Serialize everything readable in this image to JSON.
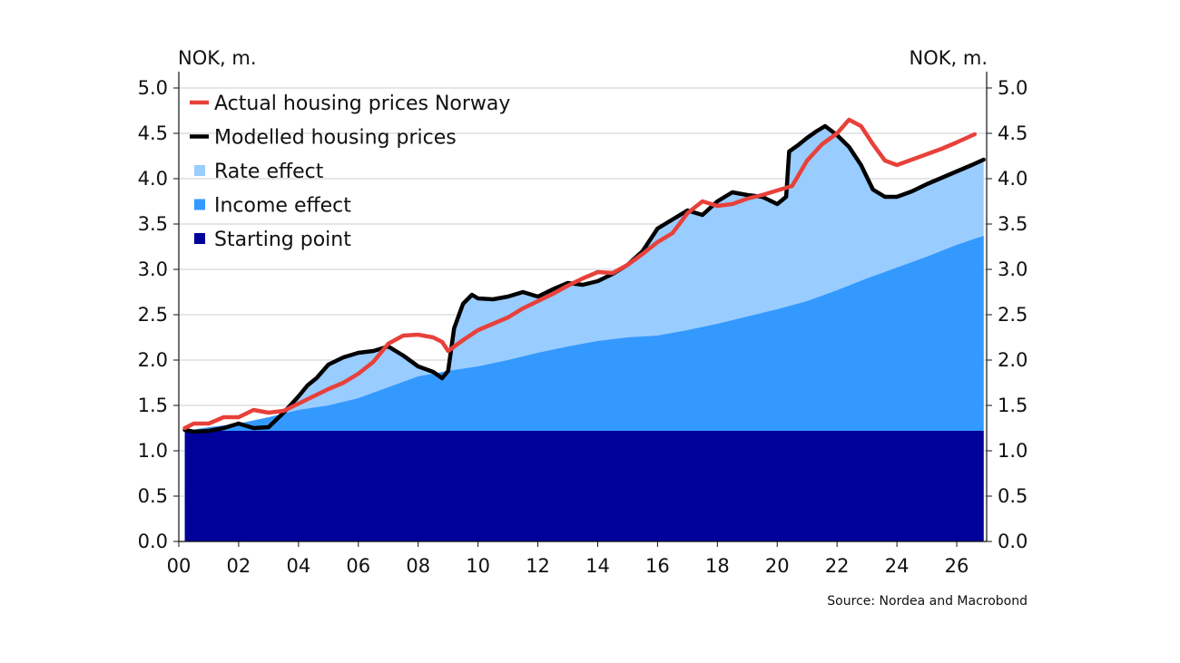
{
  "chart_data": {
    "type": "area",
    "left_axis_label": "NOK, m.",
    "right_axis_label": "NOK, m.",
    "source": "Source: Nordea and Macrobond",
    "ylim": [
      0,
      5
    ],
    "y_ticks": [
      "0.0",
      "0.5",
      "1.0",
      "1.5",
      "2.0",
      "2.5",
      "3.0",
      "3.5",
      "4.0",
      "4.5",
      "5.0"
    ],
    "y_tick_values": [
      0,
      0.5,
      1,
      1.5,
      2,
      2.5,
      3,
      3.5,
      4,
      4.5,
      5
    ],
    "xlim": [
      2000,
      2027
    ],
    "x_ticks": [
      "00",
      "02",
      "04",
      "06",
      "08",
      "10",
      "12",
      "14",
      "16",
      "18",
      "20",
      "22",
      "24",
      "26"
    ],
    "x_tick_values": [
      2000,
      2002,
      2004,
      2006,
      2008,
      2010,
      2012,
      2014,
      2016,
      2018,
      2020,
      2022,
      2024,
      2026
    ],
    "grid": "horizontal",
    "legend_position": "top-left",
    "colors": {
      "actual": "#e8403a",
      "modelled": "#000000",
      "rate": "#99ccff",
      "income": "#3399ff",
      "starting": "#00009a"
    },
    "legend": [
      {
        "label": "Actual housing prices Norway",
        "key": "actual",
        "marker": "line"
      },
      {
        "label": "Modelled housing prices",
        "key": "modelled",
        "marker": "line"
      },
      {
        "label": "Rate effect",
        "key": "rate",
        "marker": "square"
      },
      {
        "label": "Income effect",
        "key": "income",
        "marker": "square"
      },
      {
        "label": "Starting point",
        "key": "starting",
        "marker": "square"
      }
    ],
    "starting_point": 1.22,
    "income_effect_top": {
      "x": [
        2000.2,
        2001,
        2002,
        2003,
        2004,
        2005,
        2006,
        2007,
        2008,
        2009,
        2010,
        2011,
        2012,
        2013,
        2014,
        2015,
        2016,
        2017,
        2018,
        2019,
        2020,
        2021,
        2022,
        2023,
        2024,
        2025,
        2026,
        2026.9
      ],
      "y": [
        1.22,
        1.26,
        1.3,
        1.37,
        1.45,
        1.5,
        1.58,
        1.7,
        1.82,
        1.88,
        1.93,
        2.0,
        2.08,
        2.15,
        2.21,
        2.25,
        2.27,
        2.33,
        2.4,
        2.48,
        2.56,
        2.65,
        2.77,
        2.9,
        3.02,
        3.14,
        3.27,
        3.37
      ]
    },
    "rate_effect_top": {
      "x": [
        2000.2,
        2000.5,
        2001,
        2001.5,
        2002,
        2002.5,
        2003,
        2003.5,
        2004,
        2004.3,
        2004.6,
        2005,
        2005.5,
        2006,
        2006.5,
        2007,
        2007.5,
        2008,
        2008.5,
        2008.8,
        2009,
        2009.2,
        2009.5,
        2009.8,
        2010,
        2010.5,
        2011,
        2011.5,
        2012,
        2012.5,
        2013,
        2013.5,
        2014,
        2014.5,
        2015,
        2015.5,
        2016,
        2016.5,
        2017,
        2017.5,
        2018,
        2018.5,
        2019,
        2019.5,
        2020,
        2020.3,
        2020.4,
        2020.7,
        2021,
        2021.3,
        2021.6,
        2022,
        2022.4,
        2022.8,
        2023.2,
        2023.6,
        2024,
        2024.5,
        2025,
        2025.5,
        2026,
        2026.5,
        2026.9
      ],
      "y": [
        1.23,
        1.21,
        1.22,
        1.25,
        1.3,
        1.25,
        1.26,
        1.42,
        1.6,
        1.72,
        1.8,
        1.95,
        2.03,
        2.08,
        2.1,
        2.15,
        2.05,
        1.93,
        1.87,
        1.8,
        1.88,
        2.35,
        2.62,
        2.72,
        2.68,
        2.67,
        2.7,
        2.75,
        2.7,
        2.78,
        2.85,
        2.83,
        2.87,
        2.95,
        3.05,
        3.2,
        3.45,
        3.55,
        3.65,
        3.6,
        3.75,
        3.85,
        3.82,
        3.8,
        3.72,
        3.8,
        4.3,
        4.37,
        4.45,
        4.52,
        4.58,
        4.48,
        4.35,
        4.15,
        3.88,
        3.8,
        3.8,
        3.86,
        3.94,
        4.01,
        4.08,
        4.15,
        4.21
      ]
    },
    "series": [
      {
        "key": "actual",
        "x": [
          2000.2,
          2000.5,
          2001,
          2001.5,
          2002,
          2002.5,
          2003,
          2003.5,
          2004,
          2004.5,
          2005,
          2005.5,
          2006,
          2006.5,
          2007,
          2007.5,
          2008,
          2008.5,
          2008.8,
          2009,
          2009.5,
          2010,
          2010.5,
          2011,
          2011.5,
          2012,
          2012.5,
          2013,
          2013.5,
          2014,
          2014.5,
          2015,
          2015.5,
          2016,
          2016.5,
          2017,
          2017.5,
          2018,
          2018.5,
          2019,
          2019.5,
          2020,
          2020.5,
          2021,
          2021.5,
          2022,
          2022.4,
          2022.8,
          2023.2,
          2023.6,
          2024,
          2024.5,
          2025,
          2025.5,
          2026,
          2026.6
        ],
        "y": [
          1.25,
          1.3,
          1.3,
          1.37,
          1.37,
          1.45,
          1.42,
          1.44,
          1.52,
          1.6,
          1.68,
          1.75,
          1.85,
          1.98,
          2.18,
          2.27,
          2.28,
          2.25,
          2.2,
          2.1,
          2.22,
          2.33,
          2.4,
          2.47,
          2.57,
          2.65,
          2.73,
          2.82,
          2.9,
          2.97,
          2.96,
          3.05,
          3.17,
          3.3,
          3.4,
          3.62,
          3.75,
          3.7,
          3.72,
          3.78,
          3.82,
          3.87,
          3.92,
          4.2,
          4.38,
          4.5,
          4.65,
          4.58,
          4.38,
          4.2,
          4.15,
          4.21,
          4.27,
          4.33,
          4.4,
          4.49
        ]
      },
      {
        "key": "modelled",
        "x": [
          2000.2,
          2000.5,
          2001,
          2001.5,
          2002,
          2002.5,
          2003,
          2003.5,
          2004,
          2004.3,
          2004.6,
          2005,
          2005.5,
          2006,
          2006.5,
          2007,
          2007.5,
          2008,
          2008.5,
          2008.8,
          2009,
          2009.2,
          2009.5,
          2009.8,
          2010,
          2010.5,
          2011,
          2011.5,
          2012,
          2012.5,
          2013,
          2013.5,
          2014,
          2014.5,
          2015,
          2015.5,
          2016,
          2016.5,
          2017,
          2017.5,
          2018,
          2018.5,
          2019,
          2019.5,
          2020,
          2020.3,
          2020.4,
          2020.7,
          2021,
          2021.3,
          2021.6,
          2022,
          2022.4,
          2022.8,
          2023.2,
          2023.6,
          2024,
          2024.5,
          2025,
          2025.5,
          2026,
          2026.5,
          2026.9
        ],
        "y": [
          1.23,
          1.21,
          1.22,
          1.25,
          1.3,
          1.25,
          1.26,
          1.42,
          1.6,
          1.72,
          1.8,
          1.95,
          2.03,
          2.08,
          2.1,
          2.15,
          2.05,
          1.93,
          1.87,
          1.8,
          1.88,
          2.35,
          2.62,
          2.72,
          2.68,
          2.67,
          2.7,
          2.75,
          2.7,
          2.78,
          2.85,
          2.83,
          2.87,
          2.95,
          3.05,
          3.2,
          3.45,
          3.55,
          3.65,
          3.6,
          3.75,
          3.85,
          3.82,
          3.8,
          3.72,
          3.8,
          4.3,
          4.37,
          4.45,
          4.52,
          4.58,
          4.48,
          4.35,
          4.15,
          3.88,
          3.8,
          3.8,
          3.86,
          3.94,
          4.01,
          4.08,
          4.15,
          4.21
        ]
      }
    ]
  }
}
